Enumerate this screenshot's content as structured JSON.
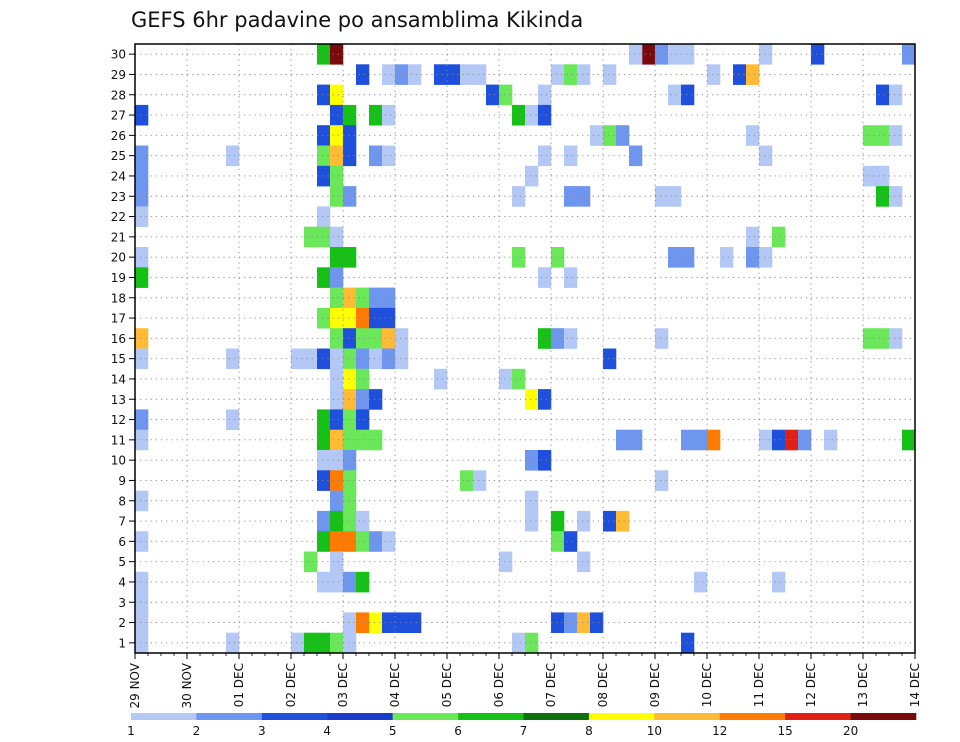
{
  "chart_data": {
    "type": "heatmap",
    "title": "GEFS 6hr padavine po ansamblima Kikinda",
    "xlabel": "",
    "ylabel": "",
    "x_ticks": [
      "29 NOV",
      "30 NOV",
      "01 DEC",
      "02 DEC",
      "03 DEC",
      "04 DEC",
      "05 DEC",
      "06 DEC",
      "07 DEC",
      "08 DEC",
      "09 DEC",
      "10 DEC",
      "11 DEC",
      "12 DEC",
      "13 DEC",
      "14 DEC"
    ],
    "y_ticks": [
      1,
      2,
      3,
      4,
      5,
      6,
      7,
      8,
      9,
      10,
      11,
      12,
      13,
      14,
      15,
      16,
      17,
      18,
      19,
      20,
      21,
      22,
      23,
      24,
      25,
      26,
      27,
      28,
      29,
      30
    ],
    "x_range": [
      0,
      15
    ],
    "y_range": [
      0.5,
      30.5
    ],
    "time_step_days": 0.25,
    "grid": true,
    "scale_labels": [
      "1",
      "2",
      "3",
      "4",
      "5",
      "6",
      "7",
      "8",
      "10",
      "12",
      "15",
      "20"
    ],
    "scale_colors": [
      "#b4c8f5",
      "#6e96ee",
      "#1e50dc",
      "#1a3ccc",
      "#6ae85a",
      "#16c016",
      "#0e700e",
      "#ffff00",
      "#ffbb33",
      "#ff7a00",
      "#e02010",
      "#7a0a0a"
    ],
    "cells": [
      {
        "m": 30,
        "x": 3.5,
        "v": 6
      },
      {
        "m": 30,
        "x": 3.75,
        "v": 20
      },
      {
        "m": 30,
        "x": 9.75,
        "v": 20
      },
      {
        "m": 30,
        "x": 9.5,
        "v": 1
      },
      {
        "m": 30,
        "x": 10.0,
        "v": 2
      },
      {
        "m": 30,
        "x": 10.25,
        "v": 1
      },
      {
        "m": 30,
        "x": 10.5,
        "v": 1
      },
      {
        "m": 30,
        "x": 12.0,
        "v": 1
      },
      {
        "m": 30,
        "x": 13.0,
        "v": 3
      },
      {
        "m": 30,
        "x": 14.75,
        "v": 2
      },
      {
        "m": 29,
        "x": 4.25,
        "v": 3
      },
      {
        "m": 29,
        "x": 4.75,
        "v": 1
      },
      {
        "m": 29,
        "x": 5.0,
        "v": 2
      },
      {
        "m": 29,
        "x": 5.25,
        "v": 1
      },
      {
        "m": 29,
        "x": 5.75,
        "v": 3
      },
      {
        "m": 29,
        "x": 6.0,
        "v": 3
      },
      {
        "m": 29,
        "x": 6.25,
        "v": 1
      },
      {
        "m": 29,
        "x": 6.5,
        "v": 1
      },
      {
        "m": 29,
        "x": 8.0,
        "v": 1
      },
      {
        "m": 29,
        "x": 8.25,
        "v": 5
      },
      {
        "m": 29,
        "x": 8.5,
        "v": 1
      },
      {
        "m": 29,
        "x": 9.0,
        "v": 1
      },
      {
        "m": 29,
        "x": 11.0,
        "v": 1
      },
      {
        "m": 29,
        "x": 11.5,
        "v": 3
      },
      {
        "m": 29,
        "x": 11.75,
        "v": 10
      },
      {
        "m": 28,
        "x": 3.5,
        "v": 3
      },
      {
        "m": 28,
        "x": 3.75,
        "v": 8
      },
      {
        "m": 28,
        "x": 6.75,
        "v": 3
      },
      {
        "m": 28,
        "x": 7.0,
        "v": 5
      },
      {
        "m": 28,
        "x": 7.75,
        "v": 1
      },
      {
        "m": 28,
        "x": 10.25,
        "v": 1
      },
      {
        "m": 28,
        "x": 10.5,
        "v": 3
      },
      {
        "m": 28,
        "x": 14.25,
        "v": 3
      },
      {
        "m": 28,
        "x": 14.5,
        "v": 1
      },
      {
        "m": 27,
        "x": 0.0,
        "v": 3
      },
      {
        "m": 27,
        "x": 3.75,
        "v": 3
      },
      {
        "m": 27,
        "x": 4.0,
        "v": 6
      },
      {
        "m": 27,
        "x": 4.5,
        "v": 6
      },
      {
        "m": 27,
        "x": 4.75,
        "v": 1
      },
      {
        "m": 27,
        "x": 7.25,
        "v": 6
      },
      {
        "m": 27,
        "x": 7.5,
        "v": 1
      },
      {
        "m": 27,
        "x": 7.75,
        "v": 3
      },
      {
        "m": 26,
        "x": 3.5,
        "v": 3
      },
      {
        "m": 26,
        "x": 3.75,
        "v": 8
      },
      {
        "m": 26,
        "x": 4.0,
        "v": 3
      },
      {
        "m": 26,
        "x": 8.75,
        "v": 1
      },
      {
        "m": 26,
        "x": 9.0,
        "v": 5
      },
      {
        "m": 26,
        "x": 9.25,
        "v": 2
      },
      {
        "m": 26,
        "x": 11.75,
        "v": 1
      },
      {
        "m": 26,
        "x": 14.0,
        "v": 5
      },
      {
        "m": 26,
        "x": 14.25,
        "v": 5
      },
      {
        "m": 26,
        "x": 14.5,
        "v": 1
      },
      {
        "m": 25,
        "x": 0.0,
        "v": 2
      },
      {
        "m": 25,
        "x": 1.75,
        "v": 1
      },
      {
        "m": 25,
        "x": 3.5,
        "v": 5
      },
      {
        "m": 25,
        "x": 3.75,
        "v": 10
      },
      {
        "m": 25,
        "x": 4.0,
        "v": 3
      },
      {
        "m": 25,
        "x": 4.5,
        "v": 2
      },
      {
        "m": 25,
        "x": 4.75,
        "v": 1
      },
      {
        "m": 25,
        "x": 7.75,
        "v": 1
      },
      {
        "m": 25,
        "x": 8.25,
        "v": 1
      },
      {
        "m": 25,
        "x": 9.5,
        "v": 2
      },
      {
        "m": 25,
        "x": 12.0,
        "v": 1
      },
      {
        "m": 24,
        "x": 0.0,
        "v": 2
      },
      {
        "m": 24,
        "x": 3.5,
        "v": 3
      },
      {
        "m": 24,
        "x": 3.75,
        "v": 5
      },
      {
        "m": 24,
        "x": 7.5,
        "v": 1
      },
      {
        "m": 24,
        "x": 14.0,
        "v": 1
      },
      {
        "m": 24,
        "x": 14.25,
        "v": 1
      },
      {
        "m": 23,
        "x": 0.0,
        "v": 2
      },
      {
        "m": 23,
        "x": 3.75,
        "v": 5
      },
      {
        "m": 23,
        "x": 4.0,
        "v": 2
      },
      {
        "m": 23,
        "x": 7.25,
        "v": 1
      },
      {
        "m": 23,
        "x": 8.25,
        "v": 2
      },
      {
        "m": 23,
        "x": 8.5,
        "v": 2
      },
      {
        "m": 23,
        "x": 10.0,
        "v": 1
      },
      {
        "m": 23,
        "x": 10.25,
        "v": 1
      },
      {
        "m": 23,
        "x": 14.25,
        "v": 6
      },
      {
        "m": 23,
        "x": 14.5,
        "v": 1
      },
      {
        "m": 22,
        "x": 0.0,
        "v": 1
      },
      {
        "m": 22,
        "x": 3.5,
        "v": 1
      },
      {
        "m": 21,
        "x": 3.25,
        "v": 5
      },
      {
        "m": 21,
        "x": 3.5,
        "v": 5
      },
      {
        "m": 21,
        "x": 3.75,
        "v": 1
      },
      {
        "m": 21,
        "x": 11.75,
        "v": 1
      },
      {
        "m": 21,
        "x": 12.25,
        "v": 5
      },
      {
        "m": 20,
        "x": 0.0,
        "v": 1
      },
      {
        "m": 20,
        "x": 3.75,
        "v": 6
      },
      {
        "m": 20,
        "x": 4.0,
        "v": 6
      },
      {
        "m": 20,
        "x": 7.25,
        "v": 5
      },
      {
        "m": 20,
        "x": 8.0,
        "v": 5
      },
      {
        "m": 20,
        "x": 10.25,
        "v": 2
      },
      {
        "m": 20,
        "x": 10.5,
        "v": 2
      },
      {
        "m": 20,
        "x": 11.25,
        "v": 1
      },
      {
        "m": 20,
        "x": 11.75,
        "v": 2
      },
      {
        "m": 20,
        "x": 12.0,
        "v": 1
      },
      {
        "m": 19,
        "x": 0.0,
        "v": 6
      },
      {
        "m": 19,
        "x": 3.5,
        "v": 6
      },
      {
        "m": 19,
        "x": 3.75,
        "v": 2
      },
      {
        "m": 19,
        "x": 7.75,
        "v": 1
      },
      {
        "m": 19,
        "x": 8.25,
        "v": 1
      },
      {
        "m": 18,
        "x": 3.75,
        "v": 5
      },
      {
        "m": 18,
        "x": 4.0,
        "v": 10
      },
      {
        "m": 18,
        "x": 4.25,
        "v": 5
      },
      {
        "m": 18,
        "x": 4.5,
        "v": 2
      },
      {
        "m": 18,
        "x": 4.75,
        "v": 2
      },
      {
        "m": 17,
        "x": 3.5,
        "v": 5
      },
      {
        "m": 17,
        "x": 3.75,
        "v": 8
      },
      {
        "m": 17,
        "x": 4.0,
        "v": 8
      },
      {
        "m": 17,
        "x": 4.25,
        "v": 12
      },
      {
        "m": 17,
        "x": 4.5,
        "v": 3
      },
      {
        "m": 17,
        "x": 4.75,
        "v": 3
      },
      {
        "m": 16,
        "x": 0.0,
        "v": 10
      },
      {
        "m": 16,
        "x": 3.75,
        "v": 5
      },
      {
        "m": 16,
        "x": 4.0,
        "v": 3
      },
      {
        "m": 16,
        "x": 4.25,
        "v": 5
      },
      {
        "m": 16,
        "x": 4.5,
        "v": 5
      },
      {
        "m": 16,
        "x": 4.75,
        "v": 10
      },
      {
        "m": 16,
        "x": 5.0,
        "v": 1
      },
      {
        "m": 16,
        "x": 7.75,
        "v": 6
      },
      {
        "m": 16,
        "x": 8.0,
        "v": 2
      },
      {
        "m": 16,
        "x": 8.25,
        "v": 1
      },
      {
        "m": 16,
        "x": 10.0,
        "v": 1
      },
      {
        "m": 16,
        "x": 14.0,
        "v": 5
      },
      {
        "m": 16,
        "x": 14.25,
        "v": 5
      },
      {
        "m": 16,
        "x": 14.5,
        "v": 1
      },
      {
        "m": 15,
        "x": 0.0,
        "v": 1
      },
      {
        "m": 15,
        "x": 1.75,
        "v": 1
      },
      {
        "m": 15,
        "x": 3.0,
        "v": 1
      },
      {
        "m": 15,
        "x": 3.25,
        "v": 1
      },
      {
        "m": 15,
        "x": 3.5,
        "v": 3
      },
      {
        "m": 15,
        "x": 3.75,
        "v": 1
      },
      {
        "m": 15,
        "x": 4.0,
        "v": 5
      },
      {
        "m": 15,
        "x": 4.25,
        "v": 2
      },
      {
        "m": 15,
        "x": 4.5,
        "v": 1
      },
      {
        "m": 15,
        "x": 4.75,
        "v": 2
      },
      {
        "m": 15,
        "x": 5.0,
        "v": 1
      },
      {
        "m": 15,
        "x": 9.0,
        "v": 3
      },
      {
        "m": 14,
        "x": 3.75,
        "v": 1
      },
      {
        "m": 14,
        "x": 4.0,
        "v": 8
      },
      {
        "m": 14,
        "x": 4.25,
        "v": 5
      },
      {
        "m": 14,
        "x": 5.75,
        "v": 1
      },
      {
        "m": 14,
        "x": 7.0,
        "v": 1
      },
      {
        "m": 14,
        "x": 7.25,
        "v": 5
      },
      {
        "m": 13,
        "x": 3.75,
        "v": 1
      },
      {
        "m": 13,
        "x": 4.0,
        "v": 10
      },
      {
        "m": 13,
        "x": 4.25,
        "v": 2
      },
      {
        "m": 13,
        "x": 4.5,
        "v": 3
      },
      {
        "m": 13,
        "x": 7.5,
        "v": 8
      },
      {
        "m": 13,
        "x": 7.75,
        "v": 3
      },
      {
        "m": 12,
        "x": 0.0,
        "v": 2
      },
      {
        "m": 12,
        "x": 1.75,
        "v": 1
      },
      {
        "m": 12,
        "x": 3.5,
        "v": 6
      },
      {
        "m": 12,
        "x": 3.75,
        "v": 3
      },
      {
        "m": 12,
        "x": 4.0,
        "v": 5
      },
      {
        "m": 12,
        "x": 4.25,
        "v": 3
      },
      {
        "m": 11,
        "x": 0.0,
        "v": 1
      },
      {
        "m": 11,
        "x": 3.5,
        "v": 6
      },
      {
        "m": 11,
        "x": 3.75,
        "v": 10
      },
      {
        "m": 11,
        "x": 4.0,
        "v": 5
      },
      {
        "m": 11,
        "x": 4.25,
        "v": 5
      },
      {
        "m": 11,
        "x": 4.5,
        "v": 5
      },
      {
        "m": 11,
        "x": 9.25,
        "v": 2
      },
      {
        "m": 11,
        "x": 9.5,
        "v": 2
      },
      {
        "m": 11,
        "x": 10.5,
        "v": 2
      },
      {
        "m": 11,
        "x": 10.75,
        "v": 2
      },
      {
        "m": 11,
        "x": 11.0,
        "v": 12
      },
      {
        "m": 11,
        "x": 12.0,
        "v": 1
      },
      {
        "m": 11,
        "x": 12.25,
        "v": 3
      },
      {
        "m": 11,
        "x": 12.5,
        "v": 15
      },
      {
        "m": 11,
        "x": 12.75,
        "v": 2
      },
      {
        "m": 11,
        "x": 13.25,
        "v": 1
      },
      {
        "m": 11,
        "x": 14.75,
        "v": 6
      },
      {
        "m": 10,
        "x": 3.5,
        "v": 1
      },
      {
        "m": 10,
        "x": 3.75,
        "v": 1
      },
      {
        "m": 10,
        "x": 4.0,
        "v": 2
      },
      {
        "m": 10,
        "x": 7.5,
        "v": 2
      },
      {
        "m": 10,
        "x": 7.75,
        "v": 3
      },
      {
        "m": 9,
        "x": 3.5,
        "v": 3
      },
      {
        "m": 9,
        "x": 3.75,
        "v": 12
      },
      {
        "m": 9,
        "x": 4.0,
        "v": 5
      },
      {
        "m": 9,
        "x": 6.25,
        "v": 5
      },
      {
        "m": 9,
        "x": 6.5,
        "v": 1
      },
      {
        "m": 9,
        "x": 10.0,
        "v": 1
      },
      {
        "m": 8,
        "x": 0.0,
        "v": 1
      },
      {
        "m": 8,
        "x": 3.75,
        "v": 2
      },
      {
        "m": 8,
        "x": 4.0,
        "v": 5
      },
      {
        "m": 8,
        "x": 7.5,
        "v": 1
      },
      {
        "m": 7,
        "x": 3.5,
        "v": 2
      },
      {
        "m": 7,
        "x": 3.75,
        "v": 6
      },
      {
        "m": 7,
        "x": 4.0,
        "v": 5
      },
      {
        "m": 7,
        "x": 4.25,
        "v": 1
      },
      {
        "m": 7,
        "x": 7.5,
        "v": 1
      },
      {
        "m": 7,
        "x": 8.0,
        "v": 6
      },
      {
        "m": 7,
        "x": 8.5,
        "v": 1
      },
      {
        "m": 7,
        "x": 9.0,
        "v": 3
      },
      {
        "m": 7,
        "x": 9.25,
        "v": 10
      },
      {
        "m": 6,
        "x": 0.0,
        "v": 1
      },
      {
        "m": 6,
        "x": 3.5,
        "v": 6
      },
      {
        "m": 6,
        "x": 3.75,
        "v": 12
      },
      {
        "m": 6,
        "x": 4.0,
        "v": 12
      },
      {
        "m": 6,
        "x": 4.25,
        "v": 5
      },
      {
        "m": 6,
        "x": 4.5,
        "v": 2
      },
      {
        "m": 6,
        "x": 4.75,
        "v": 1
      },
      {
        "m": 6,
        "x": 8.0,
        "v": 5
      },
      {
        "m": 6,
        "x": 8.25,
        "v": 3
      },
      {
        "m": 5,
        "x": 3.25,
        "v": 5
      },
      {
        "m": 5,
        "x": 3.75,
        "v": 1
      },
      {
        "m": 5,
        "x": 7.0,
        "v": 1
      },
      {
        "m": 5,
        "x": 8.5,
        "v": 1
      },
      {
        "m": 4,
        "x": 0.0,
        "v": 1
      },
      {
        "m": 4,
        "x": 3.5,
        "v": 1
      },
      {
        "m": 4,
        "x": 3.75,
        "v": 1
      },
      {
        "m": 4,
        "x": 4.0,
        "v": 2
      },
      {
        "m": 4,
        "x": 4.25,
        "v": 6
      },
      {
        "m": 4,
        "x": 10.75,
        "v": 1
      },
      {
        "m": 4,
        "x": 12.25,
        "v": 1
      },
      {
        "m": 3,
        "x": 0.0,
        "v": 1
      },
      {
        "m": 2,
        "x": 0.0,
        "v": 1
      },
      {
        "m": 2,
        "x": 4.0,
        "v": 1
      },
      {
        "m": 2,
        "x": 4.25,
        "v": 12
      },
      {
        "m": 2,
        "x": 4.5,
        "v": 8
      },
      {
        "m": 2,
        "x": 4.75,
        "v": 3
      },
      {
        "m": 2,
        "x": 5.0,
        "v": 3
      },
      {
        "m": 2,
        "x": 5.25,
        "v": 3
      },
      {
        "m": 2,
        "x": 8.0,
        "v": 3
      },
      {
        "m": 2,
        "x": 8.25,
        "v": 2
      },
      {
        "m": 2,
        "x": 8.5,
        "v": 10
      },
      {
        "m": 2,
        "x": 8.75,
        "v": 3
      },
      {
        "m": 1,
        "x": 0.0,
        "v": 1
      },
      {
        "m": 1,
        "x": 1.75,
        "v": 1
      },
      {
        "m": 1,
        "x": 3.0,
        "v": 1
      },
      {
        "m": 1,
        "x": 3.25,
        "v": 6
      },
      {
        "m": 1,
        "x": 3.5,
        "v": 6
      },
      {
        "m": 1,
        "x": 3.75,
        "v": 5
      },
      {
        "m": 1,
        "x": 4.0,
        "v": 1
      },
      {
        "m": 1,
        "x": 7.25,
        "v": 1
      },
      {
        "m": 1,
        "x": 7.5,
        "v": 5
      },
      {
        "m": 1,
        "x": 10.5,
        "v": 3
      }
    ]
  }
}
